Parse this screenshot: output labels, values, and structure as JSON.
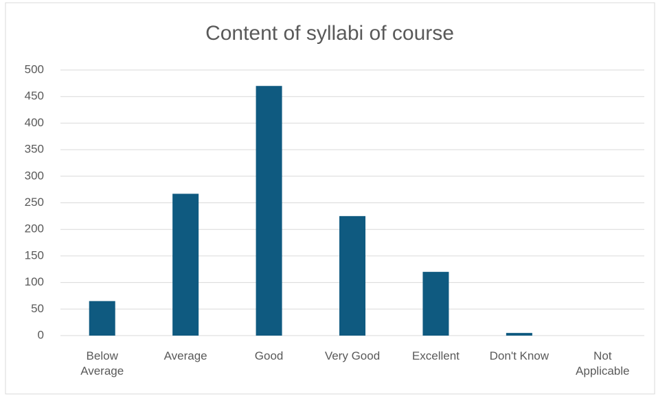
{
  "chart_data": {
    "type": "bar",
    "title": "Content of syllabi of course",
    "categories": [
      "Below Average",
      "Average",
      "Good",
      "Very Good",
      "Excellent",
      "Don't Know",
      "Not Applicable"
    ],
    "values": [
      65,
      267,
      470,
      225,
      120,
      5,
      0
    ],
    "color": "#0f5a80",
    "ylim": [
      0,
      500
    ],
    "yticks": [
      0,
      50,
      100,
      150,
      200,
      250,
      300,
      350,
      400,
      450,
      500
    ],
    "grid": true
  }
}
